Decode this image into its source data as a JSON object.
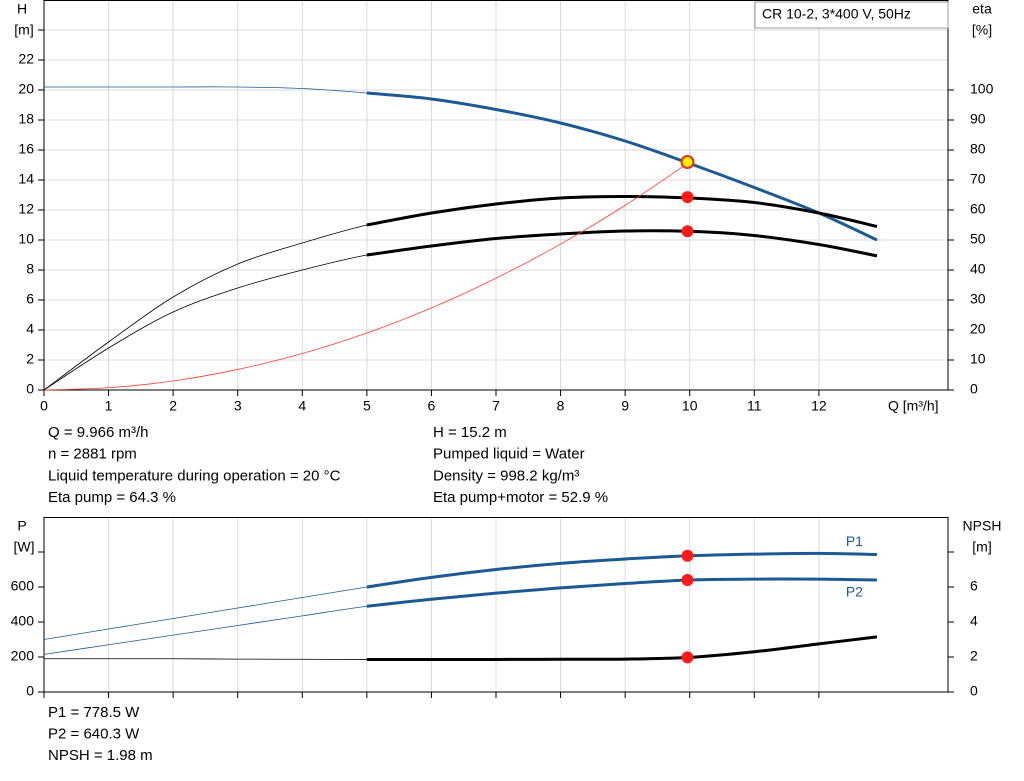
{
  "chart_data": [
    {
      "type": "line",
      "title": "CR 10-2, 3*400 V, 50Hz",
      "ylabel": "H",
      "yunit": "[m]",
      "y2label": "eta",
      "y2unit": "[%]",
      "xlabel": "Q [m³/h]",
      "xlim": [
        0,
        14
      ],
      "xticks": [
        0,
        1,
        2,
        3,
        4,
        5,
        6,
        7,
        8,
        9,
        10,
        11,
        12
      ],
      "ylim": [
        0,
        26
      ],
      "yticks": [
        0,
        2,
        4,
        6,
        8,
        10,
        12,
        14,
        16,
        18,
        20,
        22
      ],
      "ymarks": [
        24
      ],
      "y2lim": [
        0,
        130
      ],
      "y2ticks": [
        0,
        10,
        20,
        30,
        40,
        50,
        60,
        70,
        80,
        90,
        100
      ],
      "grid": "both",
      "bold_from": 5,
      "x": [
        0,
        1,
        2,
        3,
        4,
        5,
        6,
        7,
        8,
        9,
        10,
        11,
        12,
        12.9
      ],
      "series": [
        {
          "color": "#1b5a94",
          "axis": "y",
          "bold": true,
          "values": [
            20.2,
            20.2,
            20.2,
            20.2,
            20.1,
            19.8,
            19.4,
            18.7,
            17.8,
            16.6,
            15.1,
            13.5,
            11.8,
            10.0
          ]
        },
        {
          "color": "#000000",
          "axis": "y2",
          "bold": true,
          "values": [
            0,
            16,
            31,
            42,
            49,
            55,
            59,
            62,
            64,
            64.5,
            64,
            62.5,
            59,
            54.5
          ]
        },
        {
          "color": "#000000",
          "axis": "y2",
          "bold": true,
          "values": [
            0,
            14,
            26,
            34,
            40,
            45,
            48,
            50.5,
            52,
            53,
            52.9,
            51.5,
            48.5,
            44.7
          ]
        },
        {
          "color": "#ff3b30",
          "axis": "y",
          "bold": false,
          "values": [
            0,
            0.15,
            0.6,
            1.37,
            2.43,
            3.8,
            5.47,
            7.45,
            9.73,
            12.31,
            15.2,
            null,
            null,
            null
          ]
        }
      ],
      "duty": {
        "x": 9.966,
        "points": [
          {
            "axis": "y",
            "value": 15.2,
            "color": "#ffee00"
          },
          {
            "axis": "y2",
            "value": 64.3,
            "color": "#ff1a1a"
          },
          {
            "axis": "y2",
            "value": 52.9,
            "color": "#ff1a1a"
          }
        ]
      },
      "info_left": [
        "Q = 9.966 m³/h",
        "n = 2881 rpm",
        "Liquid temperature during operation = 20 °C",
        "Eta pump = 64.3 %"
      ],
      "info_right": [
        "H = 15.2 m",
        "Pumped liquid = Water",
        "Density = 998.2 kg/m³",
        "Eta pump+motor = 52.9 %"
      ]
    },
    {
      "type": "line",
      "ylabel": "P",
      "yunit": "[W]",
      "y2label": "NPSH",
      "y2unit": "[m]",
      "xlim": [
        0,
        14
      ],
      "xgrid": [
        0,
        1,
        2,
        3,
        4,
        5,
        6,
        7,
        8,
        9,
        10,
        11,
        12
      ],
      "ylim": [
        0,
        1000
      ],
      "yticks": [
        0,
        200,
        400,
        600
      ],
      "ymarks": [
        800
      ],
      "y2lim": [
        0,
        10
      ],
      "y2ticks": [
        0,
        2,
        4,
        6
      ],
      "y2marks": [
        8
      ],
      "grid": "x",
      "bold_from": 5,
      "x": [
        0,
        1,
        2,
        3,
        4,
        5,
        6,
        7,
        8,
        9,
        10,
        11,
        12,
        12.9
      ],
      "series": [
        {
          "name": "P1",
          "color": "#1b5a94",
          "axis": "y",
          "bold": true,
          "values": [
            300,
            360,
            420,
            480,
            540,
            600,
            655,
            700,
            735,
            760,
            778.5,
            788,
            792,
            786
          ]
        },
        {
          "name": "P2",
          "color": "#1b5a94",
          "axis": "y",
          "bold": true,
          "values": [
            215,
            270,
            325,
            380,
            435,
            490,
            530,
            565,
            595,
            620,
            640.3,
            645,
            645,
            640
          ]
        },
        {
          "color": "#000000",
          "axis": "y2",
          "bold": true,
          "values": [
            1.9,
            1.9,
            1.9,
            1.88,
            1.87,
            1.86,
            1.86,
            1.86,
            1.87,
            1.88,
            1.98,
            2.3,
            2.75,
            3.15
          ]
        }
      ],
      "duty": {
        "x": 9.966,
        "points": [
          {
            "axis": "y",
            "value": 778.5,
            "color": "#ff1a1a"
          },
          {
            "axis": "y",
            "value": 640.3,
            "color": "#ff1a1a"
          },
          {
            "axis": "y2",
            "value": 1.98,
            "color": "#ff1a1a"
          }
        ]
      },
      "info_left": [
        "P1 = 778.5 W",
        "P2 = 640.3 W",
        "NPSH = 1.98 m"
      ]
    }
  ]
}
